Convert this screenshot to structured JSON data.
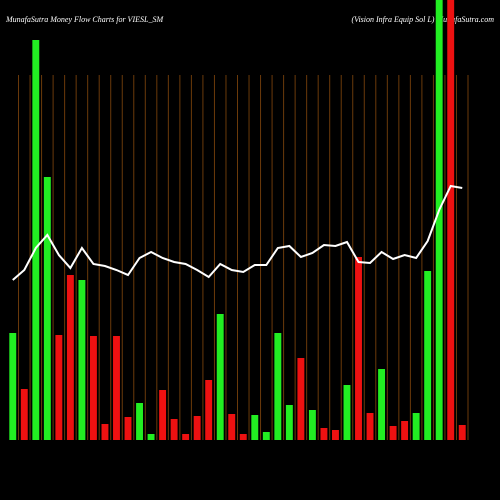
{
  "chart_data": {
    "type": "bar",
    "title": "MunafaSutra  Money Flow  Charts for VIESL_SM",
    "subtitle": "(Vision  Infra  Equip Sol L) MunafaSutra.com",
    "categories": [
      null,
      null,
      null,
      null,
      null,
      null,
      null,
      null,
      null,
      null,
      null,
      null,
      null,
      null,
      null,
      null,
      null,
      null,
      null,
      null,
      null,
      null,
      null,
      null,
      null,
      null,
      null,
      null,
      null,
      null,
      null,
      null,
      null,
      null,
      null,
      null,
      null,
      null,
      null,
      null
    ],
    "values": [
      107,
      51,
      400,
      263,
      105,
      165,
      160,
      104,
      16,
      104,
      23,
      37,
      6,
      50,
      21,
      6,
      24,
      60,
      126,
      26,
      6,
      25,
      8,
      107,
      35,
      82,
      30,
      12,
      10,
      55,
      183,
      27,
      71,
      14,
      19,
      27,
      169,
      450,
      450,
      15
    ],
    "colors": [
      "#22ee22",
      "#ee1111",
      "#22ee22",
      "#22ee22",
      "#ee1111",
      "#ee1111",
      "#22ee22",
      "#ee1111",
      "#ee1111",
      "#ee1111",
      "#ee1111",
      "#22ee22",
      "#22ee22",
      "#ee1111",
      "#ee1111",
      "#ee1111",
      "#ee1111",
      "#ee1111",
      "#22ee22",
      "#ee1111",
      "#ee1111",
      "#22ee22",
      "#22ee22",
      "#22ee22",
      "#22ee22",
      "#ee1111",
      "#22ee22",
      "#ee1111",
      "#ee1111",
      "#22ee22",
      "#ee1111",
      "#ee1111",
      "#22ee22",
      "#ee1111",
      "#ee1111",
      "#22ee22",
      "#22ee22",
      "#22ee22",
      "#ee1111",
      "#ee1111"
    ],
    "line": {
      "color": "#ffffff",
      "values": [
        160,
        170,
        192,
        205,
        185,
        172,
        192,
        176,
        174,
        170,
        165,
        182,
        188,
        182,
        178,
        176,
        170,
        163,
        176,
        170,
        168,
        175,
        175,
        192,
        194,
        183,
        187,
        195,
        194,
        198,
        178,
        177,
        188,
        181,
        185,
        182,
        199,
        230,
        254,
        252
      ]
    },
    "ylim": [
      0,
      440
    ]
  }
}
